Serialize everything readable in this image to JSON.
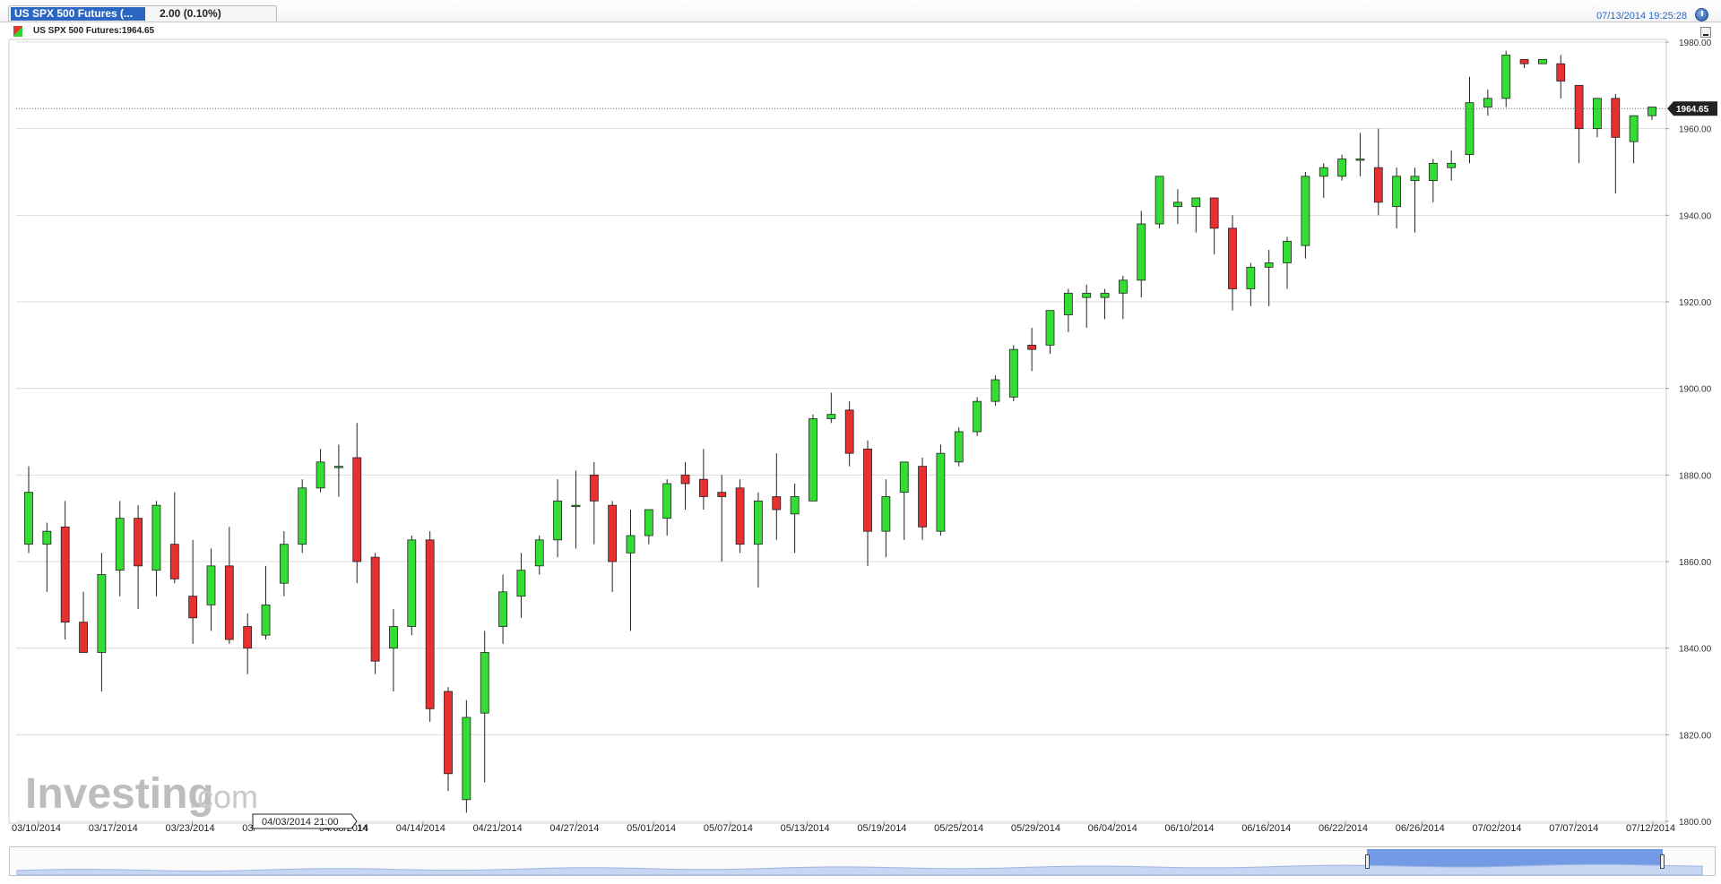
{
  "tab": {
    "title": "US SPX 500 Futures (...",
    "change": "2.00 (0.10%)"
  },
  "datetime": "07/13/2014 19:25:28",
  "legend": {
    "label": "US SPX 500 Futures:1964.65"
  },
  "watermark": {
    "text": "Investing",
    "suffix": ".com"
  },
  "crosshair_label": "04/03/2014 21:00",
  "colors": {
    "up": "#33dd33",
    "down": "#e83030",
    "grid": "#dcdcdc",
    "navigator": "#5b88e0"
  },
  "chart_data": {
    "type": "candlestick",
    "title": "US SPX 500 Futures",
    "last_price": "1964.65",
    "y_axis": {
      "min": 1800,
      "max": 1980,
      "ticks": [
        "1980.00",
        "1960.00",
        "1940.00",
        "1920.00",
        "1900.00",
        "1880.00",
        "1860.00",
        "1840.00",
        "1820.00",
        "1800.00"
      ]
    },
    "x_tick_labels": [
      "03/10/2014",
      "03/17/2014",
      "03/23/2014",
      "03/",
      "04/08/2014",
      "04/14/2014",
      "04/21/2014",
      "04/27/2014",
      "05/01/2014",
      "05/07/2014",
      "05/13/2014",
      "05/19/2014",
      "05/25/2014",
      "05/29/2014",
      "06/04/2014",
      "06/10/2014",
      "06/16/2014",
      "06/22/2014",
      "06/26/2014",
      "07/02/2014",
      "07/07/2014",
      "07/12/2014"
    ],
    "x_tick_suffix_label": "14",
    "grid": true,
    "candles": [
      {
        "o": 1864,
        "h": 1882,
        "l": 1862,
        "c": 1876
      },
      {
        "o": 1864,
        "h": 1869,
        "l": 1853,
        "c": 1867
      },
      {
        "o": 1868,
        "h": 1874,
        "l": 1842,
        "c": 1846
      },
      {
        "o": 1846,
        "h": 1853,
        "l": 1839,
        "c": 1839
      },
      {
        "o": 1839,
        "h": 1862,
        "l": 1830,
        "c": 1857
      },
      {
        "o": 1858,
        "h": 1874,
        "l": 1852,
        "c": 1870
      },
      {
        "o": 1870,
        "h": 1873,
        "l": 1849,
        "c": 1859
      },
      {
        "o": 1858,
        "h": 1874,
        "l": 1852,
        "c": 1873
      },
      {
        "o": 1864,
        "h": 1876,
        "l": 1855,
        "c": 1856
      },
      {
        "o": 1852,
        "h": 1865,
        "l": 1841,
        "c": 1847
      },
      {
        "o": 1850,
        "h": 1863,
        "l": 1844,
        "c": 1859
      },
      {
        "o": 1859,
        "h": 1868,
        "l": 1841,
        "c": 1842
      },
      {
        "o": 1845,
        "h": 1848,
        "l": 1834,
        "c": 1840
      },
      {
        "o": 1843,
        "h": 1859,
        "l": 1842,
        "c": 1850
      },
      {
        "o": 1855,
        "h": 1867,
        "l": 1852,
        "c": 1864
      },
      {
        "o": 1864,
        "h": 1879,
        "l": 1862,
        "c": 1877
      },
      {
        "o": 1877,
        "h": 1886,
        "l": 1876,
        "c": 1883
      },
      {
        "o": 1882,
        "h": 1887,
        "l": 1875,
        "c": 1882
      },
      {
        "o": 1884,
        "h": 1892,
        "l": 1855,
        "c": 1860
      },
      {
        "o": 1861,
        "h": 1862,
        "l": 1834,
        "c": 1837
      },
      {
        "o": 1840,
        "h": 1849,
        "l": 1830,
        "c": 1845
      },
      {
        "o": 1845,
        "h": 1866,
        "l": 1843,
        "c": 1865
      },
      {
        "o": 1865,
        "h": 1867,
        "l": 1823,
        "c": 1826
      },
      {
        "o": 1830,
        "h": 1831,
        "l": 1807,
        "c": 1811
      },
      {
        "o": 1805,
        "h": 1828,
        "l": 1802,
        "c": 1824
      },
      {
        "o": 1825,
        "h": 1844,
        "l": 1809,
        "c": 1839
      },
      {
        "o": 1845,
        "h": 1857,
        "l": 1841,
        "c": 1853
      },
      {
        "o": 1852,
        "h": 1862,
        "l": 1847,
        "c": 1858
      },
      {
        "o": 1859,
        "h": 1866,
        "l": 1857,
        "c": 1865
      },
      {
        "o": 1865,
        "h": 1879,
        "l": 1861,
        "c": 1874
      },
      {
        "o": 1873,
        "h": 1881,
        "l": 1863,
        "c": 1873
      },
      {
        "o": 1880,
        "h": 1883,
        "l": 1864,
        "c": 1874
      },
      {
        "o": 1873,
        "h": 1874,
        "l": 1853,
        "c": 1860
      },
      {
        "o": 1862,
        "h": 1872,
        "l": 1844,
        "c": 1866
      },
      {
        "o": 1866,
        "h": 1872,
        "l": 1864,
        "c": 1872
      },
      {
        "o": 1870,
        "h": 1879,
        "l": 1866,
        "c": 1878
      },
      {
        "o": 1880,
        "h": 1883,
        "l": 1872,
        "c": 1878
      },
      {
        "o": 1879,
        "h": 1886,
        "l": 1872,
        "c": 1875
      },
      {
        "o": 1876,
        "h": 1880,
        "l": 1860,
        "c": 1875
      },
      {
        "o": 1877,
        "h": 1879,
        "l": 1862,
        "c": 1864
      },
      {
        "o": 1864,
        "h": 1876,
        "l": 1854,
        "c": 1874
      },
      {
        "o": 1875,
        "h": 1885,
        "l": 1865,
        "c": 1872
      },
      {
        "o": 1871,
        "h": 1878,
        "l": 1862,
        "c": 1875
      },
      {
        "o": 1874,
        "h": 1894,
        "l": 1874,
        "c": 1893
      },
      {
        "o": 1893,
        "h": 1899,
        "l": 1892,
        "c": 1894
      },
      {
        "o": 1895,
        "h": 1897,
        "l": 1882,
        "c": 1885
      },
      {
        "o": 1886,
        "h": 1888,
        "l": 1859,
        "c": 1867
      },
      {
        "o": 1867,
        "h": 1879,
        "l": 1861,
        "c": 1875
      },
      {
        "o": 1876,
        "h": 1883,
        "l": 1865,
        "c": 1883
      },
      {
        "o": 1882,
        "h": 1884,
        "l": 1865,
        "c": 1868
      },
      {
        "o": 1867,
        "h": 1887,
        "l": 1866,
        "c": 1885
      },
      {
        "o": 1883,
        "h": 1891,
        "l": 1882,
        "c": 1890
      },
      {
        "o": 1890,
        "h": 1898,
        "l": 1889,
        "c": 1897
      },
      {
        "o": 1897,
        "h": 1903,
        "l": 1896,
        "c": 1902
      },
      {
        "o": 1898,
        "h": 1910,
        "l": 1897,
        "c": 1909
      },
      {
        "o": 1910,
        "h": 1914,
        "l": 1904,
        "c": 1909
      },
      {
        "o": 1910,
        "h": 1918,
        "l": 1908,
        "c": 1918
      },
      {
        "o": 1917,
        "h": 1923,
        "l": 1913,
        "c": 1922
      },
      {
        "o": 1921,
        "h": 1924,
        "l": 1914,
        "c": 1922
      },
      {
        "o": 1921,
        "h": 1923,
        "l": 1916,
        "c": 1922
      },
      {
        "o": 1922,
        "h": 1926,
        "l": 1916,
        "c": 1925
      },
      {
        "o": 1925,
        "h": 1941,
        "l": 1921,
        "c": 1938
      },
      {
        "o": 1938,
        "h": 1949,
        "l": 1937,
        "c": 1949
      },
      {
        "o": 1942,
        "h": 1946,
        "l": 1938,
        "c": 1943
      },
      {
        "o": 1942,
        "h": 1944,
        "l": 1936,
        "c": 1944
      },
      {
        "o": 1944,
        "h": 1944,
        "l": 1931,
        "c": 1937
      },
      {
        "o": 1937,
        "h": 1940,
        "l": 1918,
        "c": 1923
      },
      {
        "o": 1923,
        "h": 1929,
        "l": 1919,
        "c": 1928
      },
      {
        "o": 1928,
        "h": 1932,
        "l": 1919,
        "c": 1929
      },
      {
        "o": 1929,
        "h": 1935,
        "l": 1923,
        "c": 1934
      },
      {
        "o": 1933,
        "h": 1950,
        "l": 1930,
        "c": 1949
      },
      {
        "o": 1949,
        "h": 1952,
        "l": 1944,
        "c": 1951
      },
      {
        "o": 1949,
        "h": 1954,
        "l": 1948,
        "c": 1953
      },
      {
        "o": 1953,
        "h": 1959,
        "l": 1949,
        "c": 1953
      },
      {
        "o": 1951,
        "h": 1960,
        "l": 1940,
        "c": 1943
      },
      {
        "o": 1942,
        "h": 1951,
        "l": 1937,
        "c": 1949
      },
      {
        "o": 1948,
        "h": 1951,
        "l": 1936,
        "c": 1949
      },
      {
        "o": 1948,
        "h": 1953,
        "l": 1943,
        "c": 1952
      },
      {
        "o": 1951,
        "h": 1955,
        "l": 1948,
        "c": 1952
      },
      {
        "o": 1954,
        "h": 1972,
        "l": 1952,
        "c": 1966
      },
      {
        "o": 1965,
        "h": 1969,
        "l": 1963,
        "c": 1967
      },
      {
        "o": 1967,
        "h": 1978,
        "l": 1965,
        "c": 1977
      },
      {
        "o": 1976,
        "h": 1976,
        "l": 1974,
        "c": 1975
      },
      {
        "o": 1975,
        "h": 1976,
        "l": 1975,
        "c": 1976
      },
      {
        "o": 1975,
        "h": 1977,
        "l": 1967,
        "c": 1971
      },
      {
        "o": 1970,
        "h": 1969,
        "l": 1952,
        "c": 1960
      },
      {
        "o": 1960,
        "h": 1967,
        "l": 1958,
        "c": 1967
      },
      {
        "o": 1967,
        "h": 1968,
        "l": 1945,
        "c": 1958
      },
      {
        "o": 1957,
        "h": 1963,
        "l": 1952,
        "c": 1963
      },
      {
        "o": 1963,
        "h": 1965,
        "l": 1962,
        "c": 1965
      }
    ]
  }
}
